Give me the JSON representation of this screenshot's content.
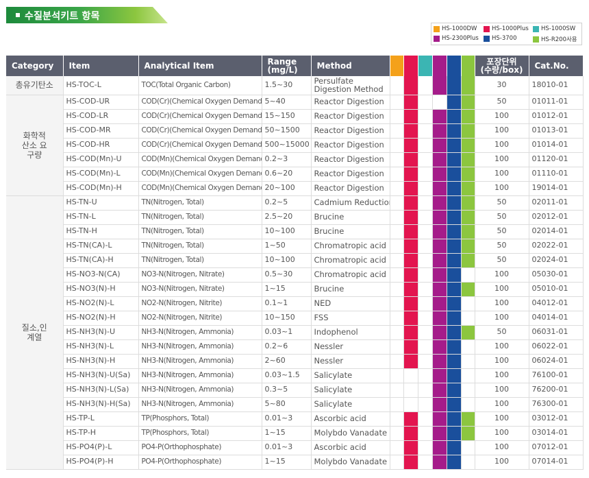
{
  "title": "수질분석키트 항목",
  "legend": [
    {
      "label": "HS-1000DW",
      "color": "#f4a11a"
    },
    {
      "label": "HS-1000Plus",
      "color": "#e3154f"
    },
    {
      "label": "HS-1000SW",
      "color": "#3bb5b3"
    },
    {
      "label": "HS-2300Plus",
      "color": "#a51c8a"
    },
    {
      "label": "HS-3700",
      "color": "#1a4f9c"
    },
    {
      "label": "HS-R200사용",
      "color": "#8cc63f"
    }
  ],
  "headers": {
    "category": "Category",
    "item": "Item",
    "analytical": "Analytical Item",
    "range_line1": "Range",
    "range_line2": "(mg/L)",
    "method": "Method",
    "pack_line1": "포장단위",
    "pack_line2": "(수량/box)",
    "cat_no": "Cat.No."
  },
  "groups": [
    {
      "category": "총유기탄소",
      "rows": [
        {
          "item": "HS-TOC-L",
          "analytical": "TOC(Total Organic Carbon)",
          "range": "1.5~30",
          "method": "Persulfate Digestion Method",
          "marks": [
            0,
            1,
            0,
            1,
            1,
            1
          ],
          "pack": "30",
          "cat": "18010-01"
        }
      ]
    },
    {
      "category": "화학적 산소 요구량",
      "rows": [
        {
          "item": "HS-COD-UR",
          "analytical": "COD(Cr)(Chemical Oxygen Demand)",
          "range": "5~40",
          "method": "Reactor Digestion",
          "marks": [
            0,
            1,
            0,
            0,
            1,
            1
          ],
          "pack": "50",
          "cat": "01011-01"
        },
        {
          "item": "HS-COD-LR",
          "analytical": "COD(Cr)(Chemical Oxygen Demand)",
          "range": "15~150",
          "method": "Reactor Digestion",
          "marks": [
            0,
            1,
            0,
            1,
            1,
            1
          ],
          "pack": "100",
          "cat": "01012-01"
        },
        {
          "item": "HS-COD-MR",
          "analytical": "COD(Cr)(Chemical Oxygen Demand)",
          "range": "50~1500",
          "method": "Reactor Digestion",
          "marks": [
            0,
            1,
            0,
            1,
            1,
            1
          ],
          "pack": "100",
          "cat": "01013-01"
        },
        {
          "item": "HS-COD-HR",
          "analytical": "COD(Cr)(Chemical Oxygen Demand)",
          "range": "500~15000",
          "method": "Reactor Digestion",
          "marks": [
            0,
            1,
            0,
            1,
            1,
            1
          ],
          "pack": "100",
          "cat": "01014-01"
        },
        {
          "item": "HS-COD(Mn)-U",
          "analytical": "COD(Mn)(Chemical Oxygen Demand)",
          "range": "0.2~3",
          "method": "Reactor Digestion",
          "marks": [
            0,
            1,
            0,
            1,
            1,
            1
          ],
          "pack": "100",
          "cat": "01120-01"
        },
        {
          "item": "HS-COD(Mn)-L",
          "analytical": "COD(Mn)(Chemical Oxygen Demand)",
          "range": "0.6~20",
          "method": "Reactor Digestion",
          "marks": [
            0,
            1,
            0,
            1,
            1,
            1
          ],
          "pack": "100",
          "cat": "01110-01"
        },
        {
          "item": "HS-COD(Mn)-H",
          "analytical": "COD(Mn)(Chemical Oxygen Demand)",
          "range": "20~100",
          "method": "Reactor Digestion",
          "marks": [
            0,
            1,
            0,
            1,
            1,
            1
          ],
          "pack": "100",
          "cat": "19014-01"
        }
      ]
    },
    {
      "category": "질소,인 계열",
      "rows": [
        {
          "item": "HS-TN-U",
          "analytical": "TN(Nitrogen, Total)",
          "range": "0.2~5",
          "method": "Cadmium Reduction",
          "marks": [
            0,
            1,
            0,
            1,
            1,
            1
          ],
          "pack": "50",
          "cat": "02011-01"
        },
        {
          "item": "HS-TN-L",
          "analytical": "TN(Nitrogen, Total)",
          "range": "2.5~20",
          "method": "Brucine",
          "marks": [
            0,
            1,
            0,
            1,
            1,
            1
          ],
          "pack": "50",
          "cat": "02012-01"
        },
        {
          "item": "HS-TN-H",
          "analytical": "TN(Nitrogen, Total)",
          "range": "10~100",
          "method": "Brucine",
          "marks": [
            0,
            1,
            0,
            1,
            1,
            1
          ],
          "pack": "50",
          "cat": "02014-01"
        },
        {
          "item": "HS-TN(CA)-L",
          "analytical": "TN(Nitrogen, Total)",
          "range": "1~50",
          "method": "Chromatropic acid",
          "marks": [
            0,
            1,
            0,
            1,
            1,
            1
          ],
          "pack": "50",
          "cat": "02022-01"
        },
        {
          "item": "HS-TN(CA)-H",
          "analytical": "TN(Nitrogen, Total)",
          "range": "10~100",
          "method": "Chromatropic acid",
          "marks": [
            0,
            1,
            0,
            1,
            1,
            1
          ],
          "pack": "50",
          "cat": "02024-01"
        },
        {
          "item": "HS-NO3-N(CA)",
          "analytical": "NO3-N(Nitrogen, Nitrate)",
          "range": "0.5~30",
          "method": "Chromatropic acid",
          "marks": [
            0,
            1,
            0,
            1,
            1,
            0
          ],
          "pack": "100",
          "cat": "05030-01"
        },
        {
          "item": "HS-NO3(N)-H",
          "analytical": "NO3-N(Nitrogen, Nitrate)",
          "range": "1~15",
          "method": "Brucine",
          "marks": [
            0,
            1,
            0,
            1,
            1,
            1
          ],
          "pack": "100",
          "cat": "05010-01"
        },
        {
          "item": "HS-NO2(N)-L",
          "analytical": "NO2-N(Nitrogen, Nitrite)",
          "range": "0.1~1",
          "method": "NED",
          "marks": [
            0,
            1,
            0,
            1,
            1,
            0
          ],
          "pack": "100",
          "cat": "04012-01"
        },
        {
          "item": "HS-NO2(N)-H",
          "analytical": "NO2-N(Nitrogen, Nitrite)",
          "range": "10~150",
          "method": "FSS",
          "marks": [
            0,
            1,
            0,
            1,
            1,
            0
          ],
          "pack": "100",
          "cat": "04014-01"
        },
        {
          "item": "HS-NH3(N)-U",
          "analytical": "NH3-N(Nitrogen, Ammonia)",
          "range": "0.03~1",
          "method": "Indophenol",
          "marks": [
            0,
            1,
            0,
            1,
            1,
            1
          ],
          "pack": "50",
          "cat": "06031-01"
        },
        {
          "item": "HS-NH3(N)-L",
          "analytical": "NH3-N(Nitrogen, Ammonia)",
          "range": "0.2~6",
          "method": "Nessler",
          "marks": [
            0,
            1,
            0,
            1,
            1,
            0
          ],
          "pack": "100",
          "cat": "06022-01"
        },
        {
          "item": "HS-NH3(N)-H",
          "analytical": "NH3-N(Nitrogen, Ammonia)",
          "range": "2~60",
          "method": "Nessler",
          "marks": [
            0,
            1,
            0,
            1,
            1,
            0
          ],
          "pack": "100",
          "cat": "06024-01"
        },
        {
          "item": "HS-NH3(N)-U(Sa)",
          "analytical": "NH3-N(Nitrogen, Ammonia)",
          "range": "0.03~1.5",
          "method": "Salicylate",
          "marks": [
            0,
            0,
            0,
            1,
            1,
            0
          ],
          "pack": "100",
          "cat": "76100-01"
        },
        {
          "item": "HS-NH3(N)-L(Sa)",
          "analytical": "NH3-N(Nitrogen, Ammonia)",
          "range": "0.3~5",
          "method": "Salicylate",
          "marks": [
            0,
            0,
            0,
            1,
            1,
            0
          ],
          "pack": "100",
          "cat": "76200-01"
        },
        {
          "item": "HS-NH3(N)-H(Sa)",
          "analytical": "NH3-N(Nitrogen, Ammonia)",
          "range": "5~80",
          "method": "Salicylate",
          "marks": [
            0,
            0,
            0,
            1,
            1,
            0
          ],
          "pack": "100",
          "cat": "76300-01"
        },
        {
          "item": "HS-TP-L",
          "analytical": "TP(Phosphors, Total)",
          "range": "0.01~3",
          "method": "Ascorbic acid",
          "marks": [
            0,
            1,
            0,
            1,
            1,
            1
          ],
          "pack": "100",
          "cat": "03012-01"
        },
        {
          "item": "HS-TP-H",
          "analytical": "TP(Phosphors, Total)",
          "range": "1~15",
          "method": "Molybdo Vanadate",
          "marks": [
            0,
            1,
            0,
            1,
            1,
            1
          ],
          "pack": "100",
          "cat": "03014-01"
        },
        {
          "item": "HS-PO4(P)-L",
          "analytical": "PO4-P(Orthophosphate)",
          "range": "0.01~3",
          "method": "Ascorbic acid",
          "marks": [
            0,
            1,
            0,
            1,
            1,
            0
          ],
          "pack": "100",
          "cat": "07012-01"
        },
        {
          "item": "HS-PO4(P)-H",
          "analytical": "PO4-P(Orthophosphate)",
          "range": "1~15",
          "method": "Molybdo Vanadate",
          "marks": [
            0,
            1,
            0,
            1,
            1,
            0
          ],
          "pack": "100",
          "cat": "07014-01"
        }
      ]
    }
  ]
}
